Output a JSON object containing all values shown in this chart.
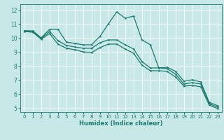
{
  "xlabel": "Humidex (Indice chaleur)",
  "background_color": "#c8e8e8",
  "grid_color": "#ffffff",
  "line_color": "#1a7a6e",
  "xlim": [
    -0.5,
    23.5
  ],
  "ylim": [
    4.7,
    12.4
  ],
  "xticks": [
    0,
    1,
    2,
    3,
    4,
    5,
    6,
    7,
    8,
    9,
    10,
    11,
    12,
    13,
    14,
    15,
    16,
    17,
    18,
    19,
    20,
    21,
    22,
    23
  ],
  "yticks": [
    5,
    6,
    7,
    8,
    9,
    10,
    11,
    12
  ],
  "line1": [
    10.5,
    10.5,
    10.0,
    10.6,
    10.6,
    9.7,
    9.6,
    9.5,
    9.5,
    10.1,
    11.0,
    11.85,
    11.4,
    11.55,
    9.85,
    9.5,
    7.85,
    7.9,
    7.6,
    6.9,
    7.0,
    6.85,
    5.4,
    5.15
  ],
  "line2": [
    10.5,
    10.45,
    9.95,
    10.45,
    9.8,
    9.45,
    9.35,
    9.25,
    9.25,
    9.65,
    9.85,
    9.85,
    9.5,
    9.2,
    8.3,
    7.85,
    7.85,
    7.8,
    7.4,
    6.7,
    6.8,
    6.7,
    5.3,
    5.05
  ],
  "line3": [
    10.45,
    10.4,
    9.9,
    10.3,
    9.55,
    9.25,
    9.15,
    9.0,
    8.95,
    9.3,
    9.55,
    9.55,
    9.2,
    8.9,
    8.05,
    7.65,
    7.65,
    7.6,
    7.2,
    6.55,
    6.6,
    6.5,
    5.2,
    4.95
  ]
}
